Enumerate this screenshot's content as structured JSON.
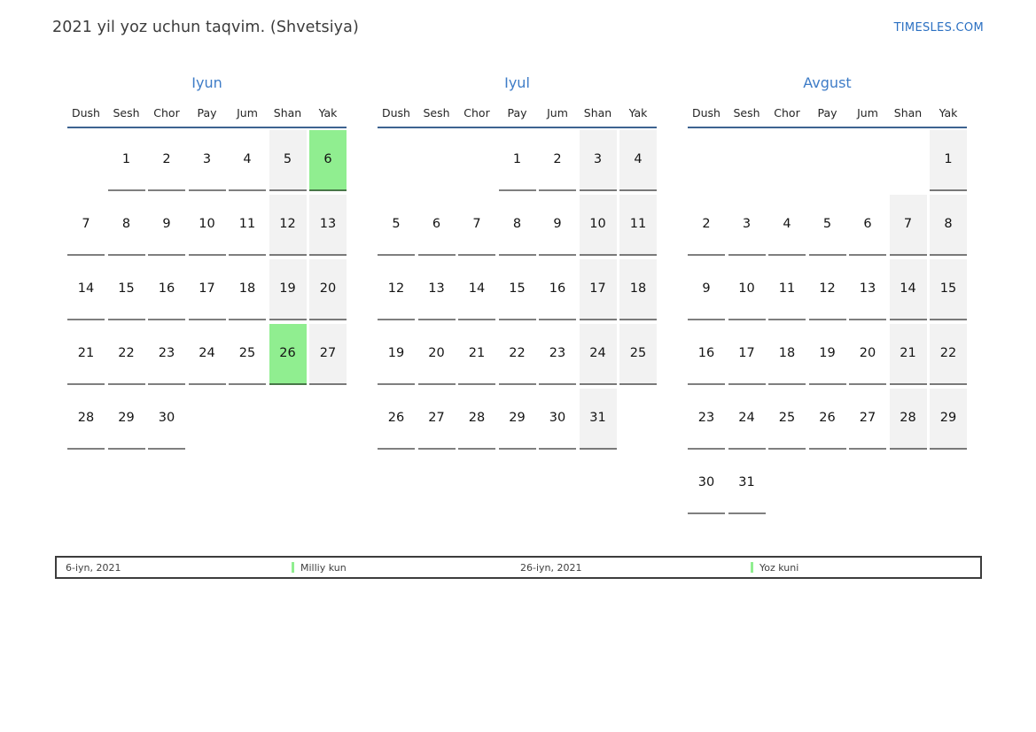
{
  "page": {
    "title": "2021 yil yoz uchun taqvim. (Shvetsiya)",
    "site_link": "TIMESLES.COM"
  },
  "weekdays": [
    "Dush",
    "Sesh",
    "Chor",
    "Pay",
    "Jum",
    "Shan",
    "Yak"
  ],
  "months": [
    {
      "name": "Iyun",
      "weeks": [
        [
          null,
          1,
          2,
          3,
          4,
          5,
          6
        ],
        [
          7,
          8,
          9,
          10,
          11,
          12,
          13
        ],
        [
          14,
          15,
          16,
          17,
          18,
          19,
          20
        ],
        [
          21,
          22,
          23,
          24,
          25,
          26,
          27
        ],
        [
          28,
          29,
          30,
          null,
          null,
          null,
          null
        ]
      ],
      "holidays": [
        6,
        26
      ]
    },
    {
      "name": "Iyul",
      "weeks": [
        [
          null,
          null,
          null,
          1,
          2,
          3,
          4
        ],
        [
          5,
          6,
          7,
          8,
          9,
          10,
          11
        ],
        [
          12,
          13,
          14,
          15,
          16,
          17,
          18
        ],
        [
          19,
          20,
          21,
          22,
          23,
          24,
          25
        ],
        [
          26,
          27,
          28,
          29,
          30,
          31,
          null
        ]
      ],
      "holidays": []
    },
    {
      "name": "Avgust",
      "weeks": [
        [
          null,
          null,
          null,
          null,
          null,
          null,
          1
        ],
        [
          2,
          3,
          4,
          5,
          6,
          7,
          8
        ],
        [
          9,
          10,
          11,
          12,
          13,
          14,
          15
        ],
        [
          16,
          17,
          18,
          19,
          20,
          21,
          22
        ],
        [
          23,
          24,
          25,
          26,
          27,
          28,
          29
        ],
        [
          30,
          31,
          null,
          null,
          null,
          null,
          null
        ]
      ],
      "holidays": []
    }
  ],
  "weekend_column_indexes": [
    5,
    6
  ],
  "legend": [
    {
      "date": "6-iyn, 2021",
      "label": "Milliy kun"
    },
    {
      "date": "26-iyn, 2021",
      "label": "Yoz kuni"
    }
  ],
  "colors": {
    "accent_blue": "#3e7cc7",
    "header_line_blue": "#3d6390",
    "link_blue": "#2b70c2",
    "weekend_gray": "#f2f2f2",
    "holiday_green": "#90ee90"
  }
}
